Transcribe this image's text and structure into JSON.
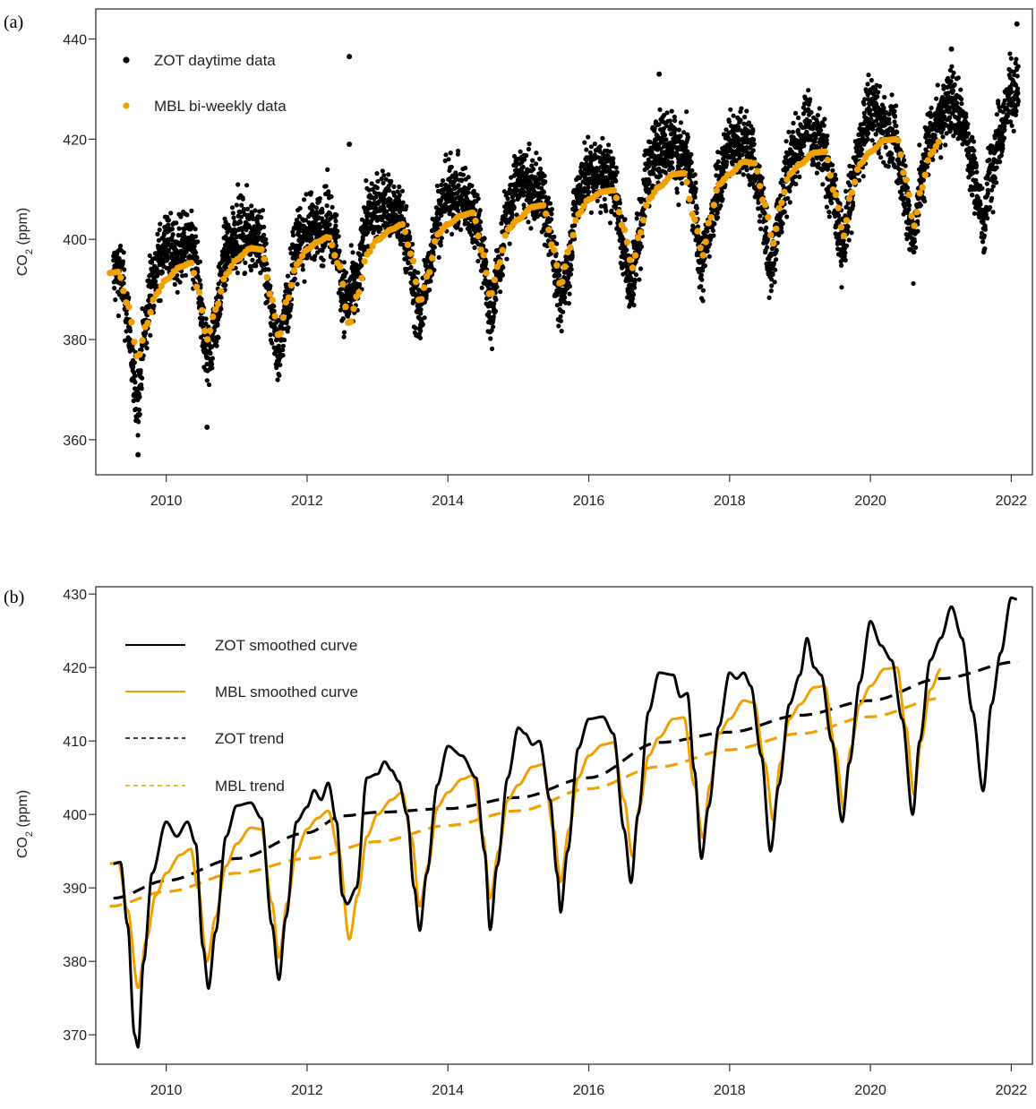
{
  "colors": {
    "zot": "#000000",
    "mbl": "#f0a000",
    "axis": "#333333"
  },
  "chart_data": [
    {
      "panel": "(a)",
      "type": "scatter",
      "ylabel": "CO2 (ppm)",
      "xlim": [
        2009.0,
        2022.3
      ],
      "ylim": [
        353,
        446
      ],
      "xticks": [
        2010,
        2012,
        2014,
        2016,
        2018,
        2020,
        2022
      ],
      "yticks": [
        360,
        380,
        400,
        420,
        440
      ],
      "legend_position": "top-left",
      "series": [
        {
          "name": "ZOT daytime data",
          "marker": "dot",
          "color_key": "zot",
          "x_range": [
            2009.25,
            2022.1
          ],
          "description": "dense daily points, approx. ZOT smoothed curve plus daily scatter of about ±5 ppm",
          "outliers": [
            [
              2009.6,
              357
            ],
            [
              2010.58,
              362.5
            ],
            [
              2012.6,
              436.5
            ],
            [
              2012.6,
              419
            ],
            [
              2017.0,
              433
            ],
            [
              2021.15,
              438
            ],
            [
              2022.08,
              443
            ]
          ]
        },
        {
          "name": "MBL bi-weekly data",
          "marker": "dot",
          "color_key": "mbl",
          "x_range": [
            2009.2,
            2021.0
          ]
        }
      ]
    },
    {
      "panel": "(b)",
      "type": "line",
      "ylabel": "CO2 (ppm)",
      "xlim": [
        2009.0,
        2022.3
      ],
      "ylim": [
        366,
        431
      ],
      "xticks": [
        2010,
        2012,
        2014,
        2016,
        2018,
        2020,
        2022
      ],
      "yticks": [
        370,
        380,
        390,
        400,
        410,
        420,
        430
      ],
      "legend_position": "top-left",
      "series": [
        {
          "name": "ZOT smoothed curve",
          "style": "solid",
          "color_key": "zot",
          "points": [
            [
              2009.25,
              393.3
            ],
            [
              2009.35,
              393.5
            ],
            [
              2009.45,
              385
            ],
            [
              2009.55,
              370
            ],
            [
              2009.6,
              368.3
            ],
            [
              2009.68,
              380
            ],
            [
              2009.8,
              392
            ],
            [
              2010.0,
              399
            ],
            [
              2010.15,
              397
            ],
            [
              2010.3,
              399
            ],
            [
              2010.42,
              396
            ],
            [
              2010.52,
              382
            ],
            [
              2010.6,
              376.3
            ],
            [
              2010.7,
              384
            ],
            [
              2010.85,
              397
            ],
            [
              2011.0,
              401.2
            ],
            [
              2011.2,
              401.6
            ],
            [
              2011.35,
              399.5
            ],
            [
              2011.5,
              385
            ],
            [
              2011.6,
              377.5
            ],
            [
              2011.7,
              386
            ],
            [
              2011.85,
              399
            ],
            [
              2012.0,
              401
            ],
            [
              2012.1,
              403.3
            ],
            [
              2012.2,
              402
            ],
            [
              2012.3,
              404.3
            ],
            [
              2012.42,
              399
            ],
            [
              2012.5,
              389
            ],
            [
              2012.57,
              387.8
            ],
            [
              2012.7,
              390
            ],
            [
              2012.85,
              405
            ],
            [
              2013.0,
              405.5
            ],
            [
              2013.1,
              407.2
            ],
            [
              2013.2,
              406
            ],
            [
              2013.3,
              404.5
            ],
            [
              2013.42,
              400
            ],
            [
              2013.52,
              390
            ],
            [
              2013.6,
              384.2
            ],
            [
              2013.7,
              392
            ],
            [
              2013.85,
              404
            ],
            [
              2014.0,
              409.3
            ],
            [
              2014.2,
              408
            ],
            [
              2014.4,
              405
            ],
            [
              2014.52,
              395
            ],
            [
              2014.6,
              384.3
            ],
            [
              2014.7,
              393
            ],
            [
              2014.85,
              405
            ],
            [
              2015.0,
              411.8
            ],
            [
              2015.1,
              411
            ],
            [
              2015.2,
              409.5
            ],
            [
              2015.3,
              410
            ],
            [
              2015.45,
              402
            ],
            [
              2015.55,
              392
            ],
            [
              2015.6,
              386.7
            ],
            [
              2015.7,
              395
            ],
            [
              2015.85,
              409
            ],
            [
              2016.0,
              413
            ],
            [
              2016.2,
              413.3
            ],
            [
              2016.35,
              411
            ],
            [
              2016.5,
              398
            ],
            [
              2016.6,
              390.7
            ],
            [
              2016.7,
              400
            ],
            [
              2016.85,
              414
            ],
            [
              2017.0,
              419.3
            ],
            [
              2017.2,
              419
            ],
            [
              2017.3,
              416
            ],
            [
              2017.4,
              416.5
            ],
            [
              2017.5,
              406
            ],
            [
              2017.6,
              394
            ],
            [
              2017.7,
              401
            ],
            [
              2017.85,
              412
            ],
            [
              2018.0,
              419.3
            ],
            [
              2018.1,
              418.5
            ],
            [
              2018.2,
              419.3
            ],
            [
              2018.3,
              417.5
            ],
            [
              2018.45,
              408
            ],
            [
              2018.58,
              395
            ],
            [
              2018.7,
              404
            ],
            [
              2018.85,
              415
            ],
            [
              2019.0,
              419
            ],
            [
              2019.1,
              424
            ],
            [
              2019.2,
              420
            ],
            [
              2019.3,
              419
            ],
            [
              2019.45,
              410
            ],
            [
              2019.6,
              399
            ],
            [
              2019.7,
              407
            ],
            [
              2019.85,
              418
            ],
            [
              2020.0,
              426.3
            ],
            [
              2020.15,
              423
            ],
            [
              2020.3,
              421
            ],
            [
              2020.45,
              413
            ],
            [
              2020.6,
              400
            ],
            [
              2020.7,
              410
            ],
            [
              2020.85,
              421
            ],
            [
              2021.0,
              424
            ],
            [
              2021.15,
              428.3
            ],
            [
              2021.3,
              424
            ],
            [
              2021.45,
              414
            ],
            [
              2021.6,
              403.2
            ],
            [
              2021.72,
              415
            ],
            [
              2021.85,
              422
            ],
            [
              2022.0,
              429.5
            ],
            [
              2022.08,
              429.3
            ]
          ]
        },
        {
          "name": "MBL smoothed curve",
          "style": "solid",
          "color_key": "mbl",
          "points": [
            [
              2009.2,
              393.3
            ],
            [
              2009.32,
              393.5
            ],
            [
              2009.45,
              387
            ],
            [
              2009.6,
              376.4
            ],
            [
              2009.72,
              383
            ],
            [
              2009.85,
              389
            ],
            [
              2010.0,
              392
            ],
            [
              2010.2,
              394.5
            ],
            [
              2010.35,
              395.3
            ],
            [
              2010.45,
              390
            ],
            [
              2010.58,
              380
            ],
            [
              2010.7,
              386
            ],
            [
              2010.85,
              393
            ],
            [
              2011.0,
              396
            ],
            [
              2011.2,
              398.2
            ],
            [
              2011.35,
              398
            ],
            [
              2011.5,
              388
            ],
            [
              2011.6,
              380.5
            ],
            [
              2011.72,
              388
            ],
            [
              2011.85,
              395
            ],
            [
              2012.0,
              398
            ],
            [
              2012.15,
              399.5
            ],
            [
              2012.3,
              400.5
            ],
            [
              2012.45,
              395
            ],
            [
              2012.6,
              383
            ],
            [
              2012.72,
              389
            ],
            [
              2012.85,
              397
            ],
            [
              2013.0,
              400
            ],
            [
              2013.2,
              402
            ],
            [
              2013.35,
              403
            ],
            [
              2013.48,
              397
            ],
            [
              2013.6,
              387.5
            ],
            [
              2013.72,
              393
            ],
            [
              2013.85,
              401
            ],
            [
              2014.0,
              403
            ],
            [
              2014.2,
              404.8
            ],
            [
              2014.35,
              405.3
            ],
            [
              2014.5,
              397
            ],
            [
              2014.6,
              388.6
            ],
            [
              2014.72,
              395
            ],
            [
              2014.85,
              402
            ],
            [
              2015.0,
              404
            ],
            [
              2015.2,
              406.5
            ],
            [
              2015.35,
              406.8
            ],
            [
              2015.5,
              398
            ],
            [
              2015.6,
              390.8
            ],
            [
              2015.72,
              398
            ],
            [
              2015.85,
              405
            ],
            [
              2016.0,
              408
            ],
            [
              2016.2,
              409.5
            ],
            [
              2016.35,
              409.8
            ],
            [
              2016.5,
              402
            ],
            [
              2016.62,
              394.3
            ],
            [
              2016.72,
              401
            ],
            [
              2016.85,
              408
            ],
            [
              2017.0,
              410.5
            ],
            [
              2017.2,
              413
            ],
            [
              2017.35,
              413.2
            ],
            [
              2017.5,
              404
            ],
            [
              2017.62,
              396.8
            ],
            [
              2017.72,
              404
            ],
            [
              2017.85,
              411
            ],
            [
              2018.0,
              413
            ],
            [
              2018.2,
              415.5
            ],
            [
              2018.35,
              415.2
            ],
            [
              2018.5,
              407
            ],
            [
              2018.62,
              399.2
            ],
            [
              2018.72,
              407
            ],
            [
              2018.85,
              413
            ],
            [
              2019.0,
              415
            ],
            [
              2019.2,
              417.3
            ],
            [
              2019.35,
              417.5
            ],
            [
              2019.5,
              409
            ],
            [
              2019.62,
              400.7
            ],
            [
              2019.72,
              409
            ],
            [
              2019.85,
              415
            ],
            [
              2020.0,
              417.5
            ],
            [
              2020.2,
              419.8
            ],
            [
              2020.38,
              420
            ],
            [
              2020.5,
              412
            ],
            [
              2020.62,
              402.7
            ],
            [
              2020.72,
              410
            ],
            [
              2020.85,
              417
            ],
            [
              2021.0,
              419.8
            ]
          ]
        },
        {
          "name": "ZOT trend",
          "style": "dashed",
          "color_key": "zot",
          "points": [
            [
              2009.25,
              388.6
            ],
            [
              2010.0,
              391.0
            ],
            [
              2011.0,
              394.0
            ],
            [
              2012.0,
              397.5
            ],
            [
              2012.5,
              399.8
            ],
            [
              2013.0,
              400.3
            ],
            [
              2014.0,
              400.8
            ],
            [
              2015.0,
              402.3
            ],
            [
              2016.0,
              405.0
            ],
            [
              2017.0,
              409.8
            ],
            [
              2018.0,
              411.2
            ],
            [
              2019.0,
              413.5
            ],
            [
              2020.0,
              415.5
            ],
            [
              2021.0,
              418.5
            ],
            [
              2022.1,
              420.8
            ]
          ]
        },
        {
          "name": "MBL trend",
          "style": "dashed",
          "color_key": "mbl",
          "points": [
            [
              2009.2,
              387.5
            ],
            [
              2010.0,
              389.5
            ],
            [
              2011.0,
              392.0
            ],
            [
              2012.0,
              394.0
            ],
            [
              2013.0,
              396.3
            ],
            [
              2014.0,
              398.5
            ],
            [
              2015.0,
              400.5
            ],
            [
              2016.0,
              403.5
            ],
            [
              2017.0,
              406.5
            ],
            [
              2018.0,
              408.8
            ],
            [
              2019.0,
              411.0
            ],
            [
              2020.0,
              413.3
            ],
            [
              2021.0,
              415.8
            ]
          ]
        }
      ]
    }
  ],
  "panels": {
    "a": {
      "tag": "(a)",
      "y_axis_label_main": "CO",
      "y_axis_label_sub": "2",
      "y_axis_label_unit": " (ppm)",
      "legend": [
        "ZOT daytime data",
        "MBL bi-weekly data"
      ]
    },
    "b": {
      "tag": "(b)",
      "y_axis_label_main": "CO",
      "y_axis_label_sub": "2",
      "y_axis_label_unit": " (ppm)",
      "legend": [
        "ZOT smoothed curve",
        "MBL smoothed curve",
        "ZOT trend",
        "MBL trend"
      ]
    }
  }
}
